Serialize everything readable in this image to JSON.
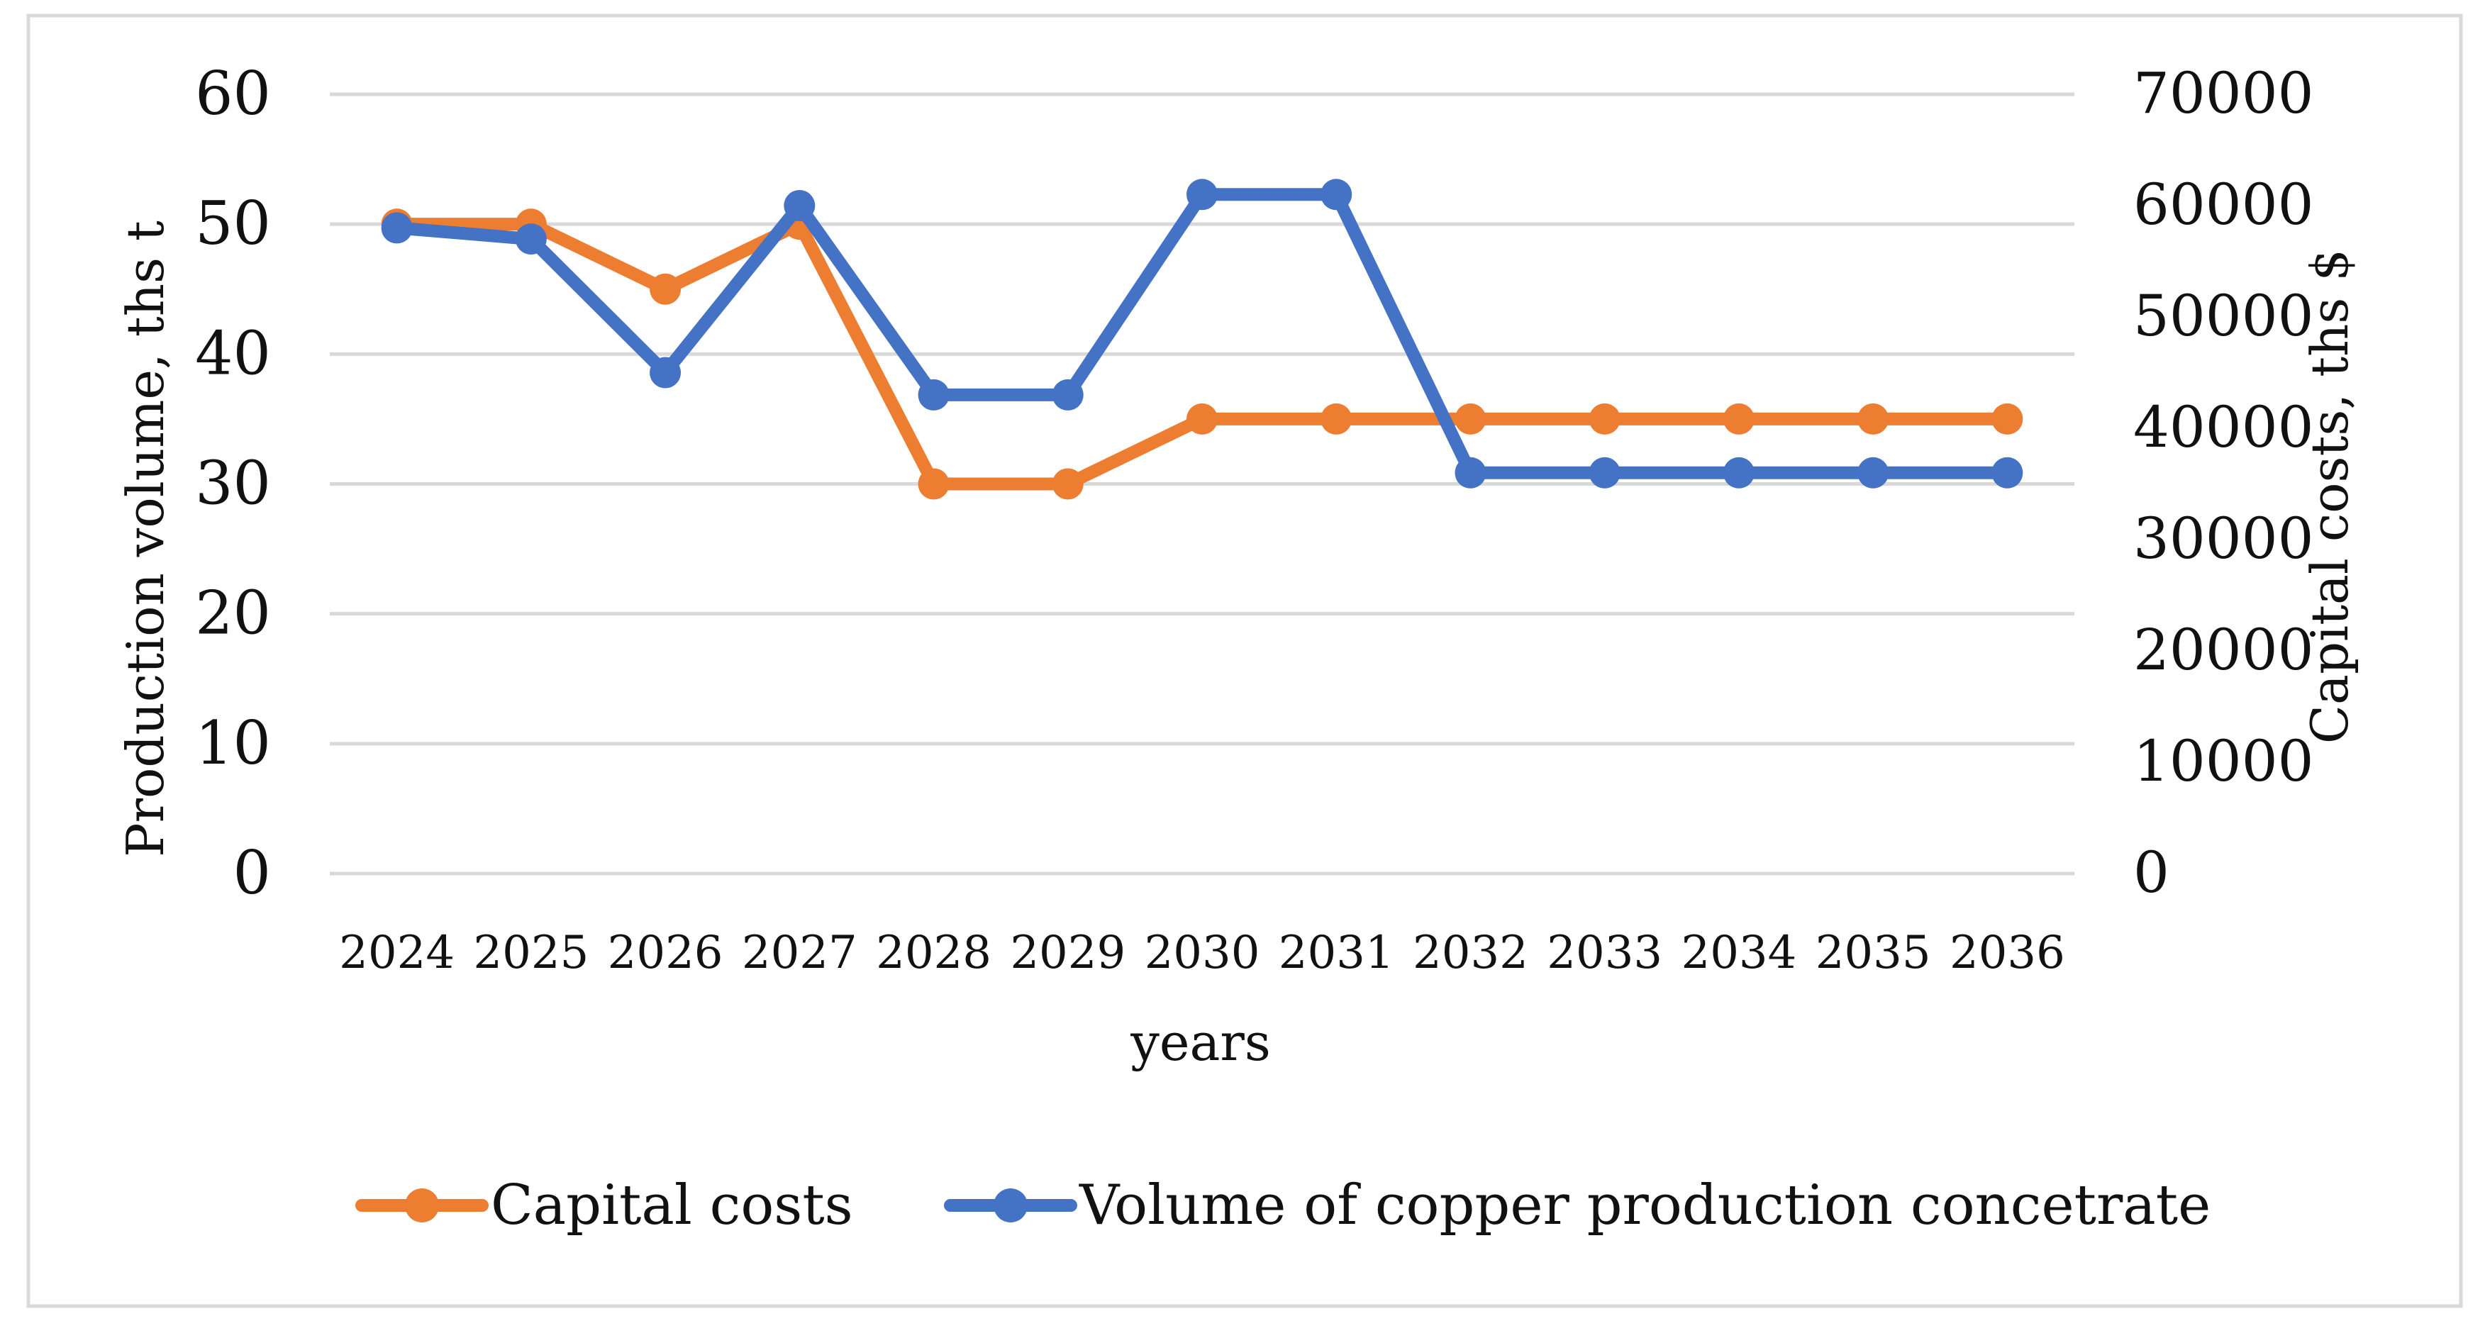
{
  "chart_data": {
    "type": "line",
    "title": "",
    "categories": [
      "2024",
      "2025",
      "2026",
      "2027",
      "2028",
      "2029",
      "2030",
      "2031",
      "2032",
      "2033",
      "2034",
      "2035",
      "2036"
    ],
    "xlabel": "years",
    "ylabel_left": "Production volume, ths t",
    "ylabel_right": "Capital costs, ths $",
    "y_left": {
      "min": 0,
      "max": 60,
      "ticks": [
        0,
        10,
        20,
        30,
        40,
        50,
        60
      ]
    },
    "y_right": {
      "min": 0,
      "max": 70000,
      "ticks": [
        0,
        10000,
        20000,
        30000,
        40000,
        50000,
        60000,
        70000
      ]
    },
    "grid": true,
    "legend_position": "bottom",
    "series": [
      {
        "name": "Capital costs",
        "color": "#ED7D31",
        "axis": "left",
        "values": [
          50,
          50,
          45,
          50,
          30,
          30,
          35,
          35,
          35,
          35,
          35,
          35,
          35
        ]
      },
      {
        "name": "Volume of copper production concetrate",
        "color": "#4472C4",
        "axis": "right",
        "values": [
          58000,
          57000,
          45000,
          60000,
          43000,
          43000,
          61000,
          61000,
          36000,
          36000,
          36000,
          36000,
          36000
        ]
      }
    ]
  }
}
